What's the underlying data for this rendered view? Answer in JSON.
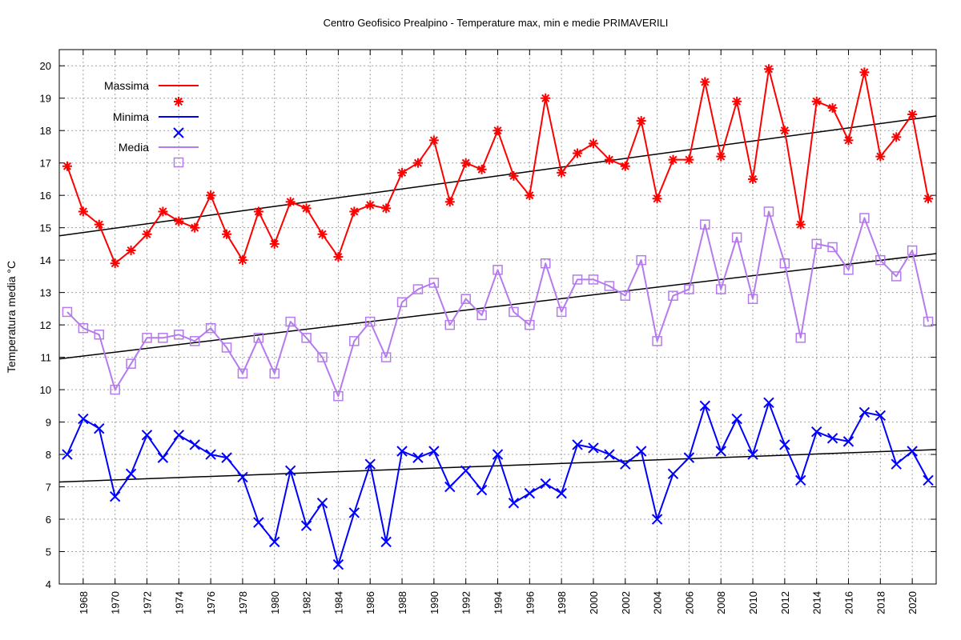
{
  "chart_data": {
    "type": "line",
    "title": "Centro Geofisico Prealpino - Temperature max, min e medie PRIMAVERILI",
    "xlabel": "",
    "ylabel": "Temperatura media °C",
    "xlim": [
      1966.5,
      2021.5
    ],
    "ylim": [
      4,
      20.5
    ],
    "x_ticks": [
      1968,
      1970,
      1972,
      1974,
      1976,
      1978,
      1980,
      1982,
      1984,
      1986,
      1988,
      1990,
      1992,
      1994,
      1996,
      1998,
      2000,
      2002,
      2004,
      2006,
      2008,
      2010,
      2012,
      2014,
      2016,
      2018,
      2020
    ],
    "y_ticks": [
      4,
      5,
      6,
      7,
      8,
      9,
      10,
      11,
      12,
      13,
      14,
      15,
      16,
      17,
      18,
      19,
      20
    ],
    "grid": true,
    "legend_position": "top-left",
    "x": [
      1967,
      1968,
      1969,
      1970,
      1971,
      1972,
      1973,
      1974,
      1975,
      1976,
      1977,
      1978,
      1979,
      1980,
      1981,
      1982,
      1983,
      1984,
      1985,
      1986,
      1987,
      1988,
      1989,
      1990,
      1991,
      1992,
      1993,
      1994,
      1995,
      1996,
      1997,
      1998,
      1999,
      2000,
      2001,
      2002,
      2003,
      2004,
      2005,
      2006,
      2007,
      2008,
      2009,
      2010,
      2011,
      2012,
      2013,
      2014,
      2015,
      2016,
      2017,
      2018,
      2019,
      2020,
      2021
    ],
    "series": [
      {
        "name": "Massima",
        "color": "#ff0000",
        "marker": "asterisk",
        "values": [
          16.9,
          15.5,
          15.1,
          13.9,
          14.3,
          14.8,
          15.5,
          15.2,
          15.0,
          16.0,
          14.8,
          14.0,
          15.5,
          14.5,
          15.8,
          15.6,
          14.8,
          14.1,
          15.5,
          15.7,
          15.6,
          16.7,
          17.0,
          17.7,
          15.8,
          17.0,
          16.8,
          18.0,
          16.6,
          16.0,
          19.0,
          16.7,
          17.3,
          17.6,
          17.1,
          16.9,
          18.3,
          15.9,
          17.1,
          17.1,
          19.5,
          17.2,
          18.9,
          16.5,
          19.9,
          18.0,
          15.1,
          18.9,
          18.7,
          17.7,
          19.8,
          17.2,
          17.8,
          18.5,
          15.9
        ],
        "trend": [
          14.75,
          18.45
        ]
      },
      {
        "name": "Minima",
        "color": "#0000ff",
        "marker": "cross",
        "values": [
          8.0,
          9.1,
          8.8,
          6.7,
          7.4,
          8.6,
          7.9,
          8.6,
          8.3,
          8.0,
          7.9,
          7.3,
          5.9,
          5.3,
          7.5,
          5.8,
          6.5,
          4.6,
          6.2,
          7.7,
          5.3,
          8.1,
          7.9,
          8.1,
          7.0,
          7.5,
          6.9,
          8.0,
          6.5,
          6.8,
          7.1,
          6.8,
          8.3,
          8.2,
          8.0,
          7.7,
          8.1,
          6.0,
          7.4,
          7.9,
          9.5,
          8.1,
          9.1,
          8.0,
          9.6,
          8.3,
          7.2,
          8.7,
          8.5,
          8.4,
          9.3,
          9.2,
          7.7,
          8.1,
          7.2
        ],
        "trend": [
          7.15,
          8.15
        ]
      },
      {
        "name": "Media",
        "color": "#b57bee",
        "marker": "square",
        "values": [
          12.4,
          11.9,
          11.7,
          10.0,
          10.8,
          11.6,
          11.6,
          11.7,
          11.5,
          11.9,
          11.3,
          10.5,
          11.6,
          10.5,
          12.1,
          11.6,
          11.0,
          9.8,
          11.5,
          12.1,
          11.0,
          12.7,
          13.1,
          13.3,
          12.0,
          12.8,
          12.3,
          13.7,
          12.4,
          12.0,
          13.9,
          12.4,
          13.4,
          13.4,
          13.2,
          12.9,
          14.0,
          11.5,
          12.9,
          13.1,
          15.1,
          13.1,
          14.7,
          12.8,
          15.5,
          13.9,
          11.6,
          14.5,
          14.4,
          13.7,
          15.3,
          14.0,
          13.5,
          14.3,
          12.1
        ],
        "trend": [
          10.95,
          14.2
        ]
      }
    ]
  }
}
